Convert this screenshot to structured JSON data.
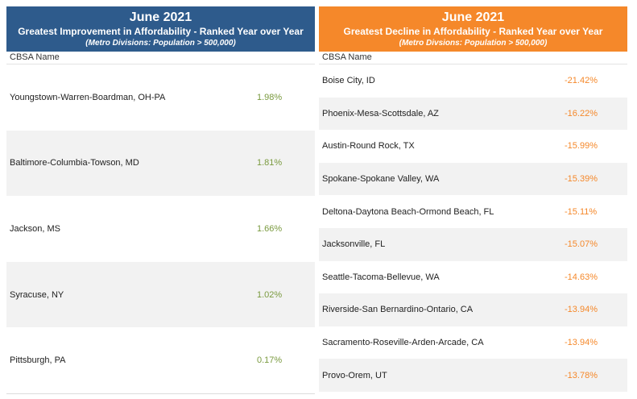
{
  "left": {
    "month": "June 2021",
    "title": "Greatest Improvement in Affordability - Ranked Year over Year",
    "subtitle": "(Metro Divisions: Population > 500,000)",
    "column_header": "CBSA Name",
    "rows": [
      {
        "name": "Youngstown-Warren-Boardman, OH-PA",
        "value": "1.98%"
      },
      {
        "name": "Baltimore-Columbia-Towson, MD",
        "value": "1.81%"
      },
      {
        "name": "Jackson, MS",
        "value": "1.66%"
      },
      {
        "name": "Syracuse, NY",
        "value": "1.02%"
      },
      {
        "name": "Pittsburgh, PA",
        "value": "0.17%"
      }
    ]
  },
  "right": {
    "month": "June 2021",
    "title": "Greatest Decline in Affordability - Ranked Year over Year",
    "subtitle": "(Metro Divsions: Population > 500,000)",
    "column_header": "CBSA Name",
    "rows": [
      {
        "name": "Boise City, ID",
        "value": "-21.42%"
      },
      {
        "name": "Phoenix-Mesa-Scottsdale, AZ",
        "value": "-16.22%"
      },
      {
        "name": "Austin-Round Rock, TX",
        "value": "-15.99%"
      },
      {
        "name": "Spokane-Spokane Valley, WA",
        "value": "-15.39%"
      },
      {
        "name": "Deltona-Daytona Beach-Ormond Beach, FL",
        "value": "-15.11%"
      },
      {
        "name": "Jacksonville, FL",
        "value": "-15.07%"
      },
      {
        "name": "Seattle-Tacoma-Bellevue, WA",
        "value": "-14.63%"
      },
      {
        "name": "Riverside-San Bernardino-Ontario, CA",
        "value": "-13.94%"
      },
      {
        "name": "Sacramento-Roseville-Arden-Arcade, CA",
        "value": "-13.94%"
      },
      {
        "name": "Provo-Orem, UT",
        "value": "-13.78%"
      }
    ]
  },
  "colors": {
    "left_header": "#2e5b8c",
    "right_header": "#f5882a",
    "positive_value": "#7a9a3f",
    "negative_value": "#f5882a"
  }
}
